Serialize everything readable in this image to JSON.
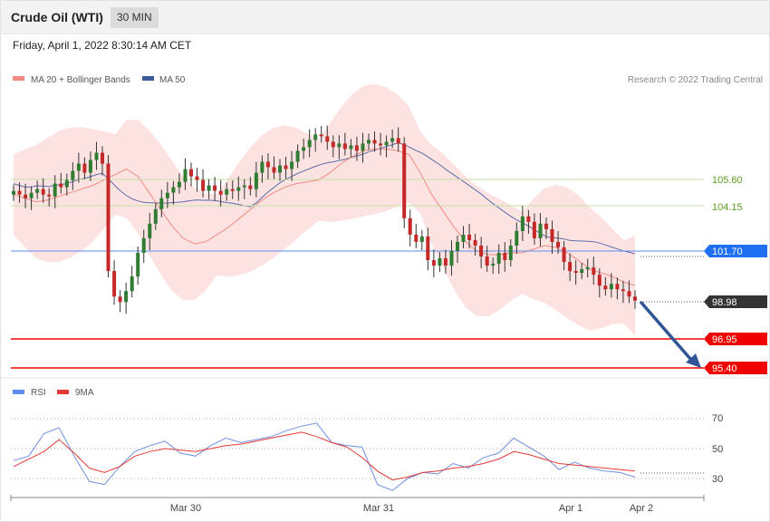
{
  "header": {
    "instrument": "Crude Oil (WTI)",
    "interval": "30 MIN",
    "timestamp": "Friday, April 1, 2022 8:30:14 AM CET"
  },
  "legend": {
    "ma20": "MA 20 + Bollinger Bands",
    "ma50": "MA 50",
    "credit": "Research © 2022 Trading Central"
  },
  "rsi_legend": {
    "rsi": "RSI",
    "ma9": "9MA"
  },
  "colors": {
    "bull": "#2e7d32",
    "bear": "#c62828",
    "ma20": "#ef5350",
    "ma50": "#3c5a99",
    "band": "#fde2e2",
    "resistance": "#8bc34a",
    "pivot": "#1e6ff2",
    "support": "#f00000",
    "current": "#333333",
    "arrow": "#2f5597"
  },
  "chart_data": [
    {
      "type": "candlestick",
      "title": "Crude Oil (WTI)",
      "interval": "30 MIN",
      "x_tick_labels": [
        "Mar 30",
        "Mar 31",
        "Apr 1",
        "Apr 2"
      ],
      "price_levels": [
        {
          "label": "105.60",
          "value": 105.6,
          "kind": "resistance"
        },
        {
          "label": "104.15",
          "value": 104.15,
          "kind": "resistance"
        },
        {
          "label": "101.70",
          "value": 101.7,
          "kind": "pivot"
        },
        {
          "label": "98.98",
          "value": 98.98,
          "kind": "current"
        },
        {
          "label": "96.95",
          "value": 96.95,
          "kind": "support"
        },
        {
          "label": "95.40",
          "value": 95.4,
          "kind": "support"
        }
      ],
      "close_series": [
        105.0,
        104.8,
        104.6,
        104.9,
        105.1,
        104.8,
        104.7,
        105.4,
        105.2,
        105.6,
        106.1,
        106.5,
        106.0,
        106.7,
        107.1,
        106.5,
        100.6,
        99.2,
        98.9,
        99.5,
        100.3,
        101.6,
        102.4,
        103.2,
        104.0,
        104.6,
        104.9,
        105.2,
        105.5,
        106.2,
        105.8,
        105.6,
        105.0,
        105.3,
        105.0,
        104.8,
        105.1,
        105.0,
        105.2,
        105.3,
        105.1,
        106.0,
        106.6,
        106.3,
        106.0,
        106.4,
        106.2,
        106.6,
        107.2,
        107.4,
        107.8,
        108.1,
        108.0,
        107.7,
        107.4,
        107.6,
        107.3,
        107.5,
        107.2,
        107.6,
        107.8,
        107.6,
        107.5,
        107.7,
        107.9,
        107.6,
        103.5,
        102.6,
        102.2,
        102.5,
        101.2,
        100.9,
        101.3,
        100.9,
        101.7,
        102.2,
        102.6,
        102.3,
        102.0,
        101.4,
        100.9,
        101.0,
        101.6,
        101.2,
        102.0,
        102.8,
        103.6,
        103.3,
        102.4,
        103.2,
        102.9,
        102.2,
        101.9,
        101.1,
        100.6,
        100.5,
        100.7,
        100.8,
        100.4,
        99.8,
        99.6,
        99.9,
        99.6,
        99.5,
        99.2,
        98.98
      ],
      "ma20": [
        104.8,
        104.6,
        104.4,
        104.5,
        104.7,
        104.9,
        105.1,
        105.3,
        105.6,
        105.9,
        106.2,
        105.8,
        104.9,
        104.0,
        103.1,
        102.4,
        102.1,
        102.2,
        102.6,
        103.0,
        103.5,
        104.0,
        104.5,
        104.9,
        105.2,
        105.4,
        105.5,
        105.6,
        106.0,
        106.5,
        106.9,
        107.2,
        107.3,
        107.3,
        107.2,
        107.0,
        106.0,
        104.8,
        103.9,
        103.0,
        102.2,
        101.7,
        101.5,
        101.5,
        101.6,
        101.6,
        101.8,
        102.0,
        101.9,
        101.6,
        101.2,
        100.7,
        100.5,
        100.3,
        100.0,
        99.8
      ],
      "rsi": [
        42,
        45,
        60,
        64,
        45,
        28,
        26,
        38,
        48,
        52,
        55,
        47,
        45,
        52,
        57,
        54,
        56,
        58,
        62,
        65,
        67,
        54,
        52,
        51,
        26,
        22,
        30,
        34,
        33,
        40,
        37,
        44,
        47,
        57,
        51,
        45,
        36,
        41,
        37,
        35,
        34,
        31
      ],
      "rsi_ma9": [
        38,
        43,
        48,
        56,
        47,
        37,
        34,
        38,
        45,
        48,
        50,
        49,
        48,
        50,
        52,
        53,
        55,
        57,
        59,
        61,
        58,
        54,
        51,
        44,
        35,
        29,
        31,
        34,
        35,
        37,
        38,
        40,
        43,
        48,
        46,
        43,
        40,
        39,
        38,
        37,
        36,
        35
      ],
      "rsi_levels": [
        30,
        50,
        70
      ],
      "forecast_arrow": {
        "from": 98.98,
        "to": 95.4
      }
    }
  ]
}
